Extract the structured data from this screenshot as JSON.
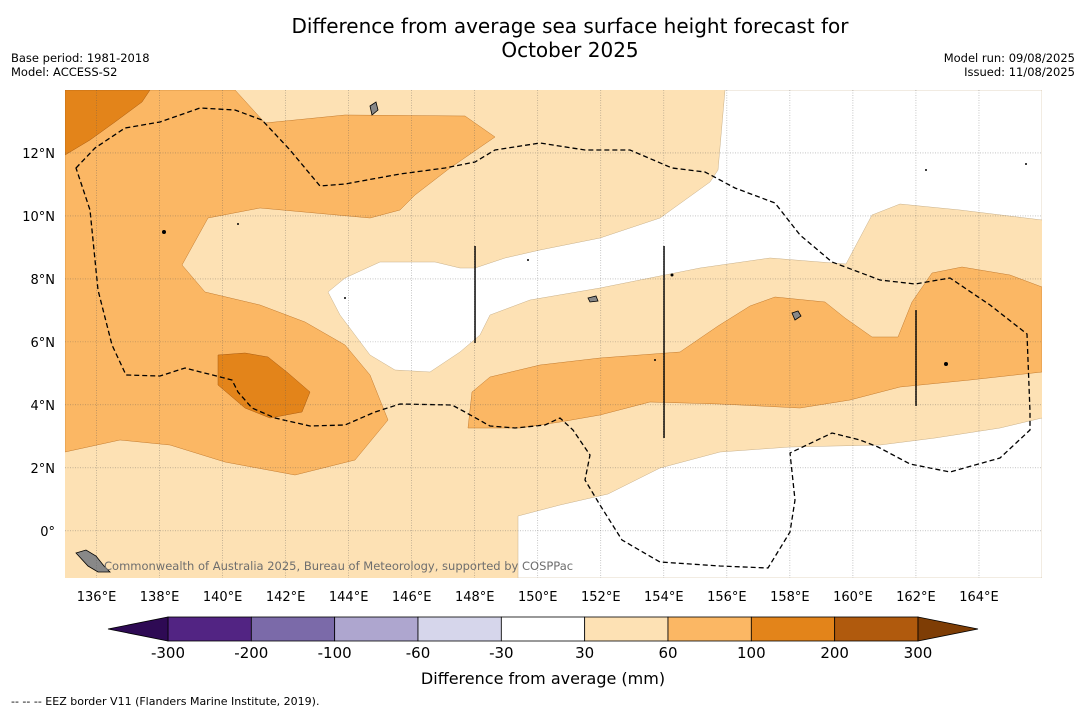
{
  "title_line1": "Difference from average sea surface height forecast for",
  "title_line2": "October 2025",
  "base_period": "Base period: 1981-2018",
  "model": "Model: ACCESS-S2",
  "model_run": "Model run: 09/08/2025",
  "issued": "Issued: 11/08/2025",
  "map": {
    "lon_range": [
      135,
      166
    ],
    "lat_range": [
      -1.5,
      14
    ],
    "lon_ticks": [
      "136°E",
      "138°E",
      "140°E",
      "142°E",
      "144°E",
      "146°E",
      "148°E",
      "150°E",
      "152°E",
      "154°E",
      "156°E",
      "158°E",
      "160°E",
      "162°E",
      "164°E"
    ],
    "lat_ticks": [
      "12°N",
      "10°N",
      "8°N",
      "6°N",
      "4°N",
      "2°N",
      "0°"
    ],
    "gridlines": true,
    "copyright": "Commonwealth of Australia 2025, Bureau of Meteorology, supported by COSPPac"
  },
  "colorbar": {
    "label": "Difference from average (mm)",
    "tick_labels": [
      "-300",
      "-200",
      "-100",
      "-60",
      "-30",
      "30",
      "60",
      "100",
      "200",
      "300"
    ],
    "colors": [
      "#522483",
      "#7b6aa9",
      "#aea6cf",
      "#d6d6eb",
      "#ffffff",
      "#fde1b4",
      "#fbb764",
      "#e3841a",
      "#b05a0d"
    ],
    "under_color": "#2e0a54",
    "over_color": "#7e3d05"
  },
  "colors": {
    "band_30_60": "#fde1b4",
    "band_60_100": "#fbb764",
    "band_100_200": "#e3841a"
  },
  "footnote": "--  --  -- EEZ border V11 (Flanders Marine Institute, 2019)."
}
